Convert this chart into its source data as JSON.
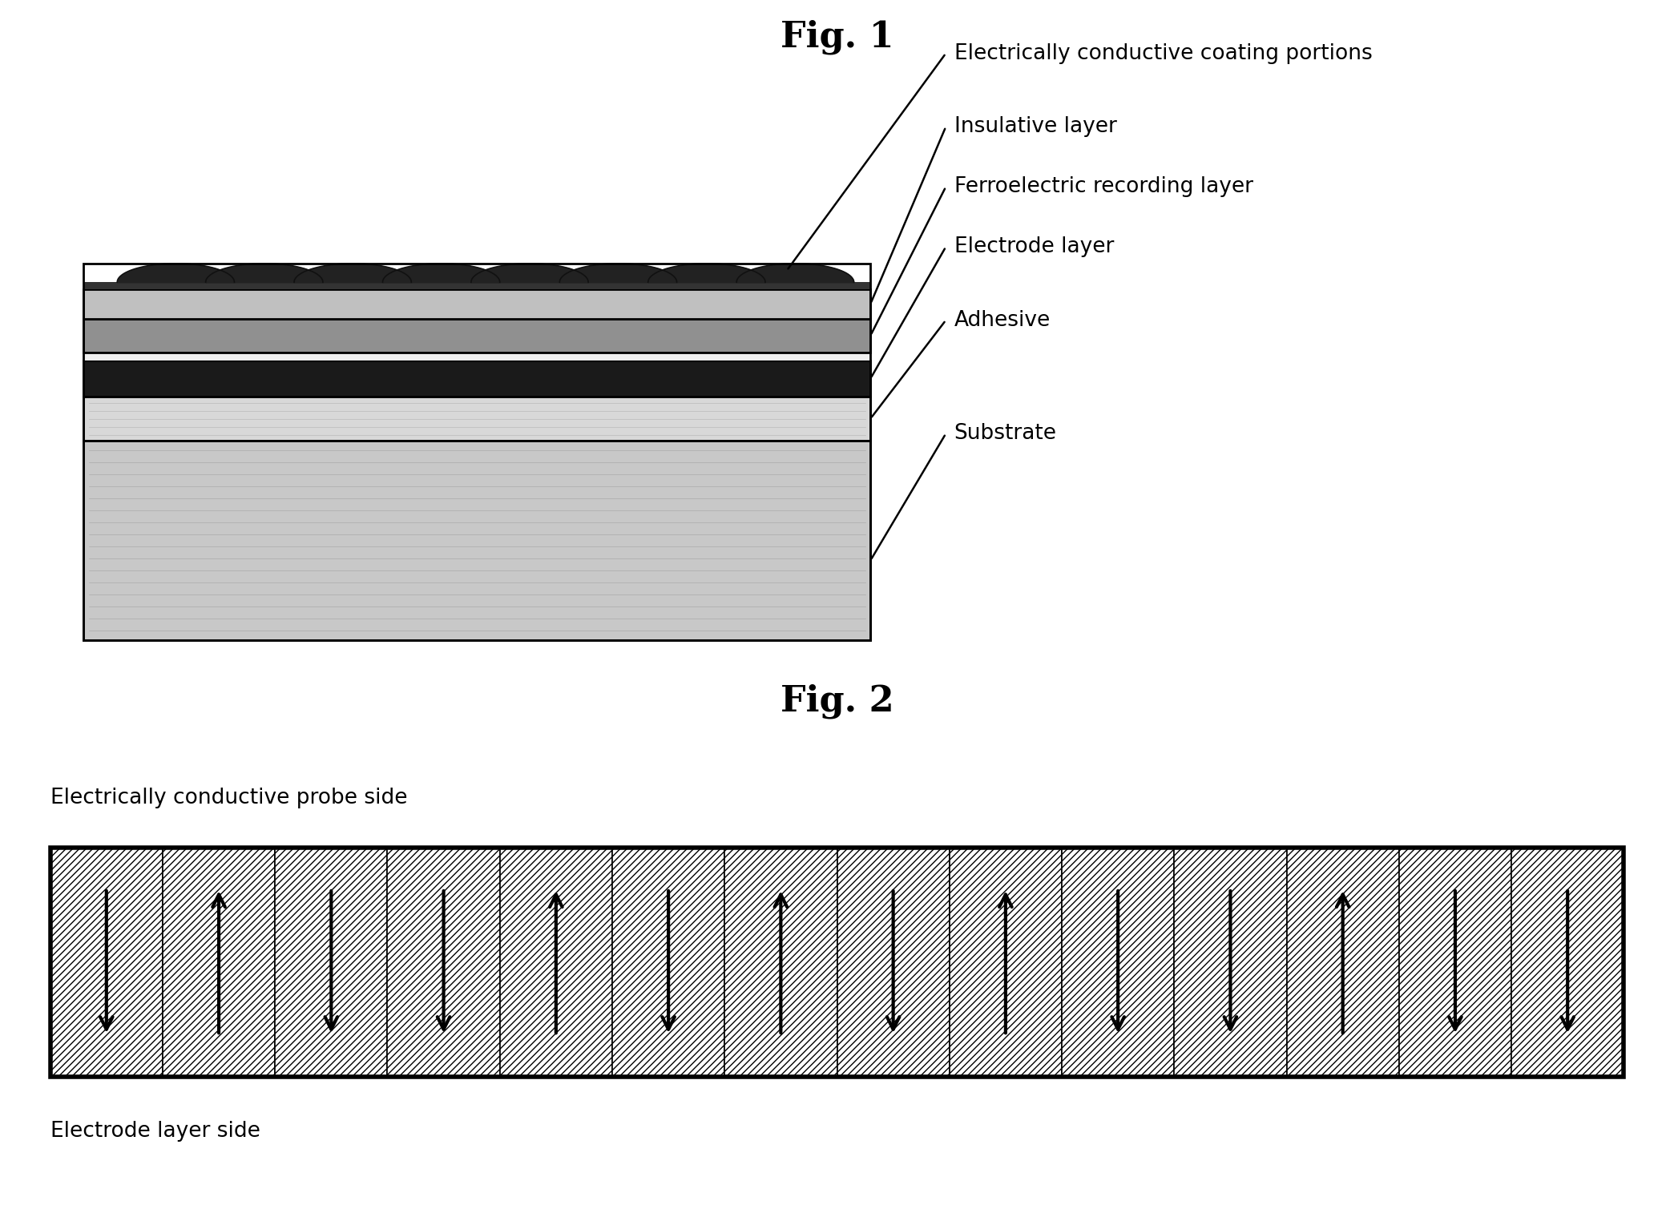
{
  "fig1_title": "Fig. 1",
  "fig2_title": "Fig. 2",
  "background_color": "#ffffff",
  "title_fontsize": 32,
  "label_fontsize": 19,
  "fig1_labels": [
    {
      "text": "Electrically conductive coating portions"
    },
    {
      "text": "Insulative layer"
    },
    {
      "text": "Ferroelectric recording layer"
    },
    {
      "text": "Electrode layer"
    },
    {
      "text": "Adhesive"
    },
    {
      "text": "Substrate"
    }
  ],
  "fig2_probe_label": "Electrically conductive probe side",
  "fig2_electrode_label": "Electrode layer side",
  "num_cells": 14,
  "cell_directions": [
    -1,
    1,
    -1,
    -1,
    1,
    -1,
    1,
    -1,
    1,
    -1,
    -1,
    1,
    -1,
    -1
  ]
}
